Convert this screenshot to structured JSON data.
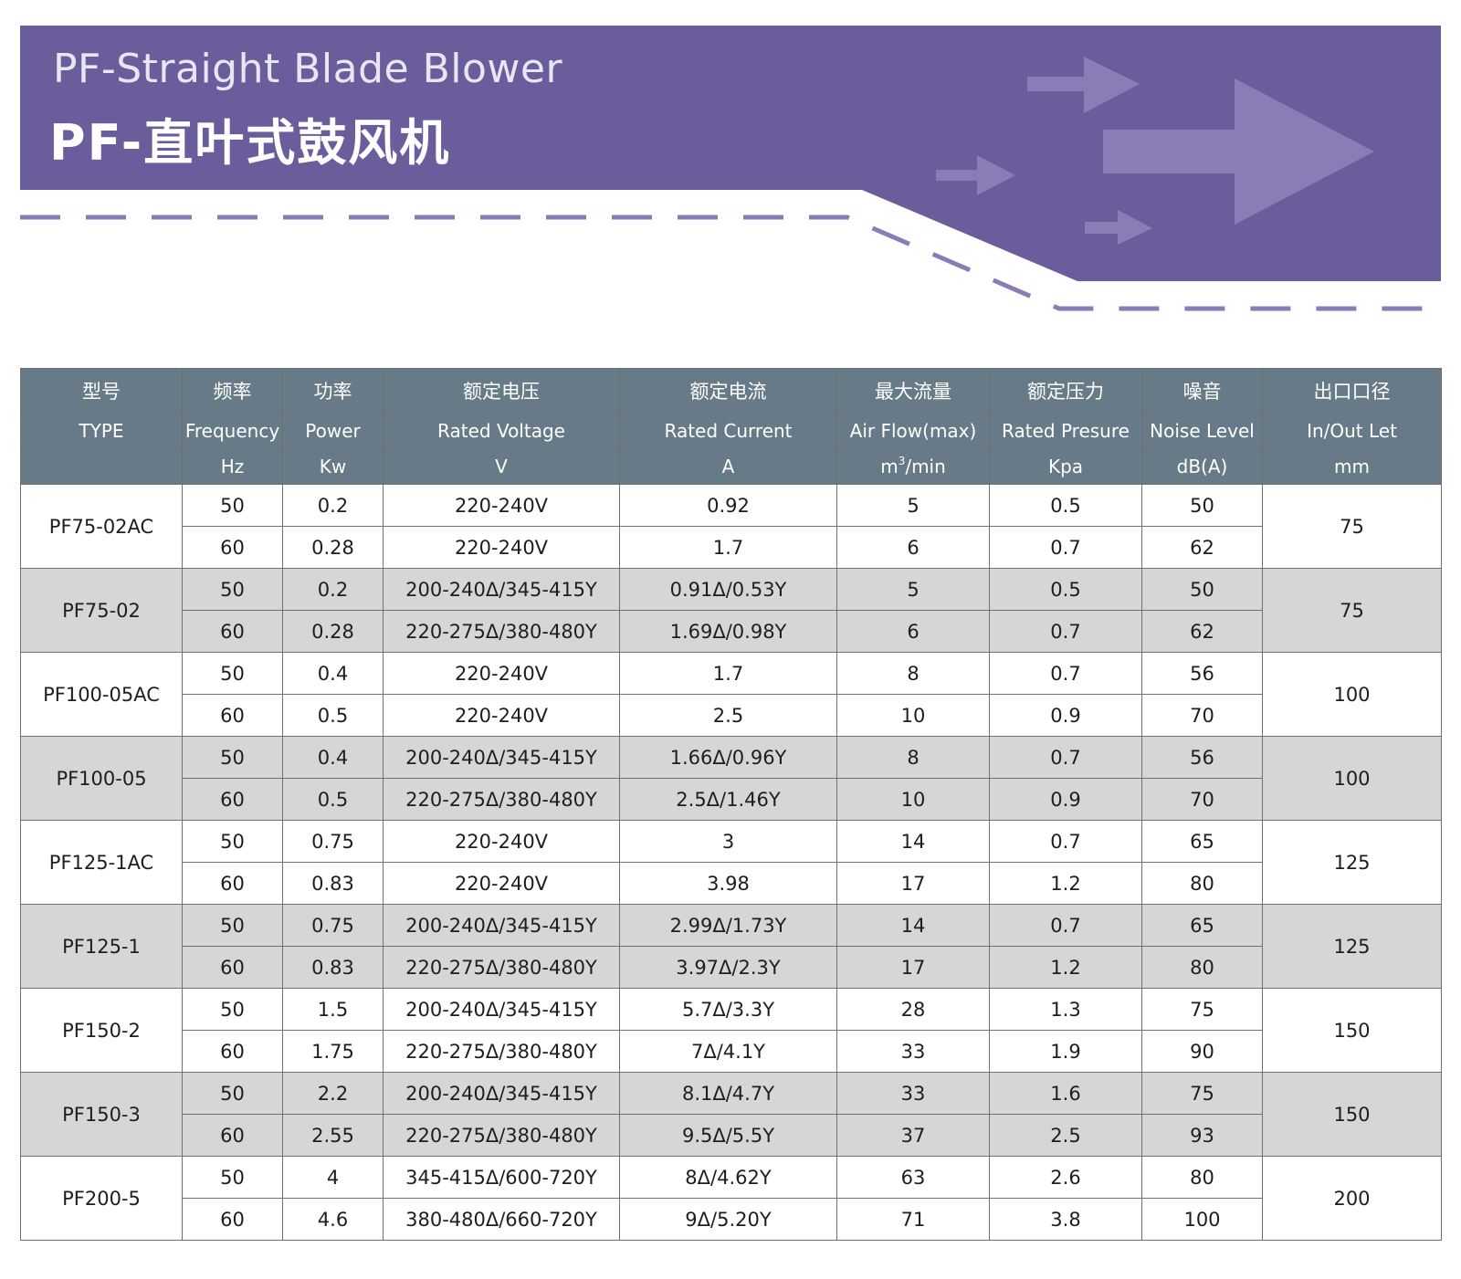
{
  "header": {
    "title_en": "PF-Straight Blade Blower",
    "title_cn": "PF-直叶式鼓风机",
    "banner_color": "#6b5d9c",
    "arrow_color": "#8a7db5"
  },
  "table": {
    "header_cn": [
      "型号",
      "频率",
      "功率",
      "额定电压",
      "额定电流",
      "最大流量",
      "额定压力",
      "噪音",
      "出口口径"
    ],
    "header_en": [
      "TYPE",
      "Frequency",
      "Power",
      "Rated Voltage",
      "Rated Current",
      "Air Flow(max)",
      "Rated Presure",
      "Noise Level",
      "In/Out Let"
    ],
    "header_units": [
      "",
      "Hz",
      "Kw",
      "V",
      "A",
      "m3/min",
      "Kpa",
      "dB(A)",
      "mm"
    ],
    "header_color": "#667b87",
    "shade_color": "#d6d6d6",
    "models": [
      {
        "type": "PF75-02AC",
        "outlet": "75",
        "rows": [
          {
            "hz": "50",
            "kw": "0.2",
            "v": "220-240V",
            "a": "0.92",
            "flow": "5",
            "kpa": "0.5",
            "db": "50"
          },
          {
            "hz": "60",
            "kw": "0.28",
            "v": "220-240V",
            "a": "1.7",
            "flow": "6",
            "kpa": "0.7",
            "db": "62"
          }
        ]
      },
      {
        "type": "PF75-02",
        "outlet": "75",
        "rows": [
          {
            "hz": "50",
            "kw": "0.2",
            "v": "200-240Δ/345-415Y",
            "a": "0.91Δ/0.53Y",
            "flow": "5",
            "kpa": "0.5",
            "db": "50"
          },
          {
            "hz": "60",
            "kw": "0.28",
            "v": "220-275Δ/380-480Y",
            "a": "1.69Δ/0.98Y",
            "flow": "6",
            "kpa": "0.7",
            "db": "62"
          }
        ]
      },
      {
        "type": "PF100-05AC",
        "outlet": "100",
        "rows": [
          {
            "hz": "50",
            "kw": "0.4",
            "v": "220-240V",
            "a": "1.7",
            "flow": "8",
            "kpa": "0.7",
            "db": "56"
          },
          {
            "hz": "60",
            "kw": "0.5",
            "v": "220-240V",
            "a": "2.5",
            "flow": "10",
            "kpa": "0.9",
            "db": "70"
          }
        ]
      },
      {
        "type": "PF100-05",
        "outlet": "100",
        "rows": [
          {
            "hz": "50",
            "kw": "0.4",
            "v": "200-240Δ/345-415Y",
            "a": "1.66Δ/0.96Y",
            "flow": "8",
            "kpa": "0.7",
            "db": "56"
          },
          {
            "hz": "60",
            "kw": "0.5",
            "v": "220-275Δ/380-480Y",
            "a": "2.5Δ/1.46Y",
            "flow": "10",
            "kpa": "0.9",
            "db": "70"
          }
        ]
      },
      {
        "type": "PF125-1AC",
        "outlet": "125",
        "rows": [
          {
            "hz": "50",
            "kw": "0.75",
            "v": "220-240V",
            "a": "3",
            "flow": "14",
            "kpa": "0.7",
            "db": "65"
          },
          {
            "hz": "60",
            "kw": "0.83",
            "v": "220-240V",
            "a": "3.98",
            "flow": "17",
            "kpa": "1.2",
            "db": "80"
          }
        ]
      },
      {
        "type": "PF125-1",
        "outlet": "125",
        "rows": [
          {
            "hz": "50",
            "kw": "0.75",
            "v": "200-240Δ/345-415Y",
            "a": "2.99Δ/1.73Y",
            "flow": "14",
            "kpa": "0.7",
            "db": "65"
          },
          {
            "hz": "60",
            "kw": "0.83",
            "v": "220-275Δ/380-480Y",
            "a": "3.97Δ/2.3Y",
            "flow": "17",
            "kpa": "1.2",
            "db": "80"
          }
        ]
      },
      {
        "type": "PF150-2",
        "outlet": "150",
        "rows": [
          {
            "hz": "50",
            "kw": "1.5",
            "v": "200-240Δ/345-415Y",
            "a": "5.7Δ/3.3Y",
            "flow": "28",
            "kpa": "1.3",
            "db": "75"
          },
          {
            "hz": "60",
            "kw": "1.75",
            "v": "220-275Δ/380-480Y",
            "a": "7Δ/4.1Y",
            "flow": "33",
            "kpa": "1.9",
            "db": "90"
          }
        ]
      },
      {
        "type": "PF150-3",
        "outlet": "150",
        "rows": [
          {
            "hz": "50",
            "kw": "2.2",
            "v": "200-240Δ/345-415Y",
            "a": "8.1Δ/4.7Y",
            "flow": "33",
            "kpa": "1.6",
            "db": "75"
          },
          {
            "hz": "60",
            "kw": "2.55",
            "v": "220-275Δ/380-480Y",
            "a": "9.5Δ/5.5Y",
            "flow": "37",
            "kpa": "2.5",
            "db": "93"
          }
        ]
      },
      {
        "type": "PF200-5",
        "outlet": "200",
        "rows": [
          {
            "hz": "50",
            "kw": "4",
            "v": "345-415Δ/600-720Y",
            "a": "8Δ/4.62Y",
            "flow": "63",
            "kpa": "2.6",
            "db": "80"
          },
          {
            "hz": "60",
            "kw": "4.6",
            "v": "380-480Δ/660-720Y",
            "a": "9Δ/5.20Y",
            "flow": "71",
            "kpa": "3.8",
            "db": "100"
          }
        ]
      }
    ]
  }
}
